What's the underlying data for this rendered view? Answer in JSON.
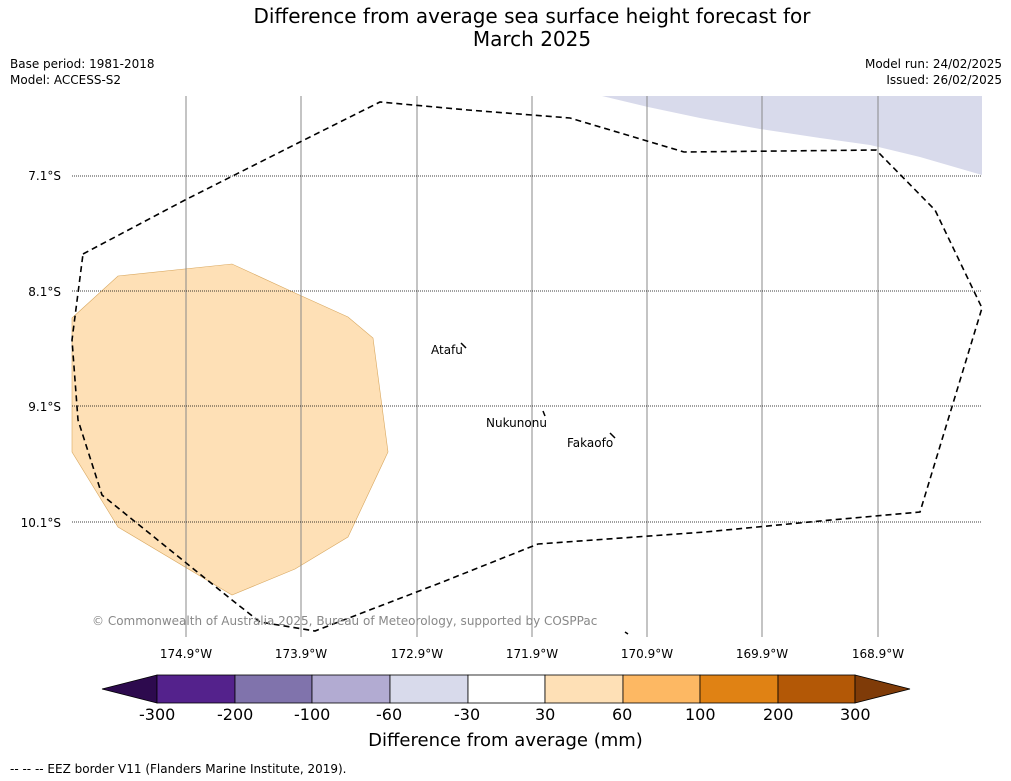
{
  "title_line1": "Difference from average sea surface height forecast for",
  "title_line2": "March 2025",
  "meta": {
    "base_period": "Base period: 1981-2018",
    "model": "Model: ACCESS-S2",
    "model_run": "Model run: 24/02/2025",
    "issued": "Issued: 26/02/2025"
  },
  "lat_labels": [
    "7.1°S",
    "8.1°S",
    "9.1°S",
    "10.1°S"
  ],
  "lon_labels": [
    "174.9°W",
    "173.9°W",
    "172.9°W",
    "171.9°W",
    "170.9°W",
    "169.9°W",
    "168.9°W"
  ],
  "places": [
    "Atafu",
    "Nukunonu",
    "Fakaofo"
  ],
  "copyright": "© Commonwealth of Australia 2025, Bureau of Meteorology, supported by COSPPac",
  "colorbar": {
    "title": "Difference from average (mm)",
    "ticks": [
      "-300",
      "-200",
      "-100",
      "-60",
      "-30",
      "30",
      "60",
      "100",
      "200",
      "300"
    ],
    "colors": [
      "#2d0a4e",
      "#54228c",
      "#8073ac",
      "#b2abd2",
      "#d8daeb",
      "#ffffff",
      "#fee0b6",
      "#fdb863",
      "#e08214",
      "#b35806",
      "#7f3b08"
    ]
  },
  "footnote": "-- -- -- EEZ border V11 (Flanders Marine Institute, 2019)."
}
